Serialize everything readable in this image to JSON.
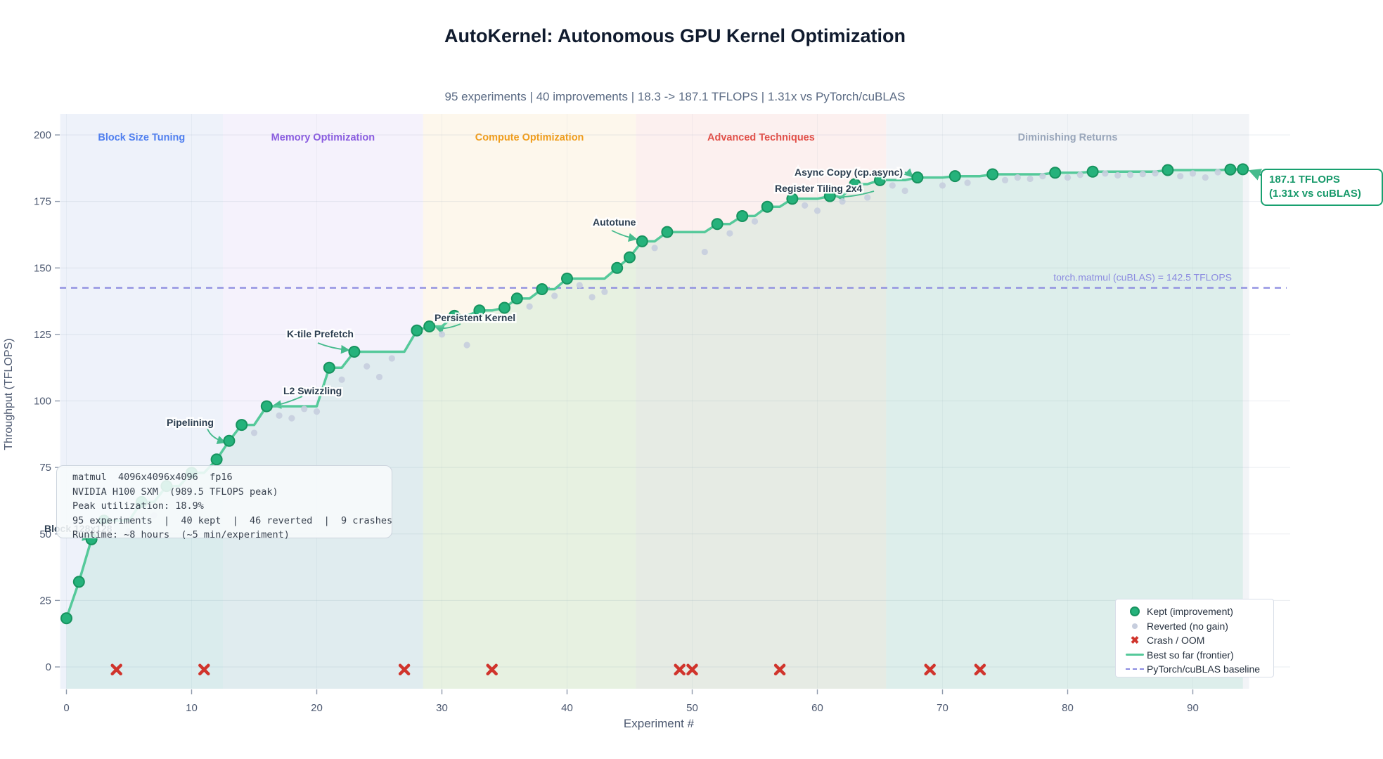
{
  "title": "AutoKernel: Autonomous GPU Kernel Optimization",
  "subtitle": "95 experiments  |  40 improvements  |  18.3 -> 187.1 TFLOPS  |  1.31x vs PyTorch/cuBLAS",
  "info_box": {
    "lines": [
      "matmul  4096x4096x4096  fp16",
      "NVIDIA H100 SXM  (989.5 TFLOPS peak)",
      "Peak utilization: 18.9%",
      "95 experiments  |  40 kept  |  46 reverted  |  9 crashes",
      "Runtime: ~8 hours  (~5 min/experiment)"
    ]
  },
  "callout": {
    "line1": "187.1 TFLOPS",
    "line2": "(1.31x vs cuBLAS)"
  },
  "legend": {
    "items": [
      {
        "label": "Kept (improvement)",
        "marker": "kept-marker-icon"
      },
      {
        "label": "Reverted (no gain)",
        "marker": "reverted-marker-icon"
      },
      {
        "label": "Crash / OOM",
        "marker": "crash-marker-icon"
      },
      {
        "label": "Best so far (frontier)",
        "marker": "frontier-line-icon"
      },
      {
        "label": "PyTorch/cuBLAS baseline",
        "marker": "baseline-dash-icon"
      }
    ],
    "crash_glyph": "✖"
  },
  "colors": {
    "frontier_line": "#55c99a",
    "kept_fill": "#25b27b",
    "kept_edge": "#17935f",
    "area_fill": "rgba(85,201,154,0.13)",
    "reverted": "#c7cede",
    "crash": "#d0342c",
    "baseline": "#8b8be0",
    "grid_h": "rgba(148,163,184,0.20)",
    "grid_v": "rgba(148,163,184,0.10)",
    "tick": "#8e99ab",
    "tick_label": "#4c5870",
    "annotation": "#2c3e50",
    "arrow": "#46bb8d",
    "callout_green": "#18a06f"
  },
  "chart_data": {
    "type": "scatter",
    "title": "AutoKernel: Autonomous GPU Kernel Optimization",
    "xlabel": "Experiment #",
    "ylabel": "Throughput (TFLOPS)",
    "xlim": [
      -0.5,
      97.5
    ],
    "ylim": [
      -8,
      207
    ],
    "xticks": [
      0,
      10,
      20,
      30,
      40,
      50,
      60,
      70,
      80,
      90
    ],
    "yticks": [
      0,
      25,
      50,
      75,
      100,
      125,
      150,
      175,
      200
    ],
    "grid": true,
    "legend_position": "lower right",
    "baseline": {
      "value": 142.5,
      "label": "torch.matmul (cuBLAS) = 142.5 TFLOPS"
    },
    "phases": [
      {
        "label": "Block Size Tuning",
        "start": -0.5,
        "end": 12.5,
        "bg": "#eef2fa",
        "color": "#4f7ff0"
      },
      {
        "label": "Memory Optimization",
        "start": 12.5,
        "end": 28.5,
        "bg": "#f5f2fc",
        "color": "#8a5ce0"
      },
      {
        "label": "Compute Optimization",
        "start": 28.5,
        "end": 45.5,
        "bg": "#fdf7ec",
        "color": "#f09d1c"
      },
      {
        "label": "Advanced Techniques",
        "start": 45.5,
        "end": 65.5,
        "bg": "#fcf0ef",
        "color": "#e25049"
      },
      {
        "label": "Diminishing Returns",
        "start": 65.5,
        "end": 94.5,
        "bg": "#f2f4f7",
        "color": "#9aa7bb"
      }
    ],
    "series": [
      {
        "name": "Kept (improvement)",
        "points": [
          [
            0,
            18.3
          ],
          [
            1,
            32
          ],
          [
            2,
            48
          ],
          [
            3,
            55
          ],
          [
            6,
            62
          ],
          [
            8,
            68
          ],
          [
            10,
            73
          ],
          [
            12,
            78
          ],
          [
            13,
            85
          ],
          [
            14,
            91
          ],
          [
            16,
            98
          ],
          [
            21,
            112.5
          ],
          [
            23,
            118.5
          ],
          [
            28,
            126.5
          ],
          [
            29,
            128
          ],
          [
            31,
            132
          ],
          [
            33,
            134
          ],
          [
            35,
            135
          ],
          [
            36,
            138.5
          ],
          [
            38,
            142
          ],
          [
            40,
            146
          ],
          [
            44,
            150
          ],
          [
            45,
            154
          ],
          [
            46,
            160
          ],
          [
            48,
            163.5
          ],
          [
            52,
            166.5
          ],
          [
            54,
            169.5
          ],
          [
            56,
            173
          ],
          [
            58,
            176
          ],
          [
            61,
            177
          ],
          [
            63,
            181.5
          ],
          [
            65,
            183
          ],
          [
            68,
            184
          ],
          [
            71,
            184.5
          ],
          [
            74,
            185.2
          ],
          [
            79,
            185.8
          ],
          [
            82,
            186.2
          ],
          [
            88,
            186.8
          ],
          [
            93,
            187
          ],
          [
            94,
            187.1
          ]
        ]
      },
      {
        "name": "Reverted (no gain)",
        "points": [
          [
            5,
            51
          ],
          [
            7,
            57
          ],
          [
            9,
            63
          ],
          [
            15,
            88
          ],
          [
            17,
            94.5
          ],
          [
            18,
            93.5
          ],
          [
            19,
            97
          ],
          [
            20,
            96
          ],
          [
            22,
            108
          ],
          [
            24,
            113
          ],
          [
            25,
            109
          ],
          [
            26,
            116
          ],
          [
            30,
            125
          ],
          [
            32,
            121
          ],
          [
            37,
            135.5
          ],
          [
            39,
            139.5
          ],
          [
            41,
            143.5
          ],
          [
            42,
            139
          ],
          [
            43,
            141
          ],
          [
            47,
            157.5
          ],
          [
            51,
            156
          ],
          [
            53,
            163
          ],
          [
            55,
            167.5
          ],
          [
            59,
            173.5
          ],
          [
            60,
            171.5
          ],
          [
            62,
            175
          ],
          [
            64,
            176.5
          ],
          [
            66,
            181
          ],
          [
            67,
            179
          ],
          [
            70,
            181
          ],
          [
            72,
            182
          ],
          [
            75,
            183
          ],
          [
            76,
            184
          ],
          [
            77,
            183.5
          ],
          [
            78,
            184.5
          ],
          [
            80,
            184
          ],
          [
            81,
            185
          ],
          [
            83,
            185.5
          ],
          [
            84,
            184.8
          ],
          [
            85,
            185
          ],
          [
            86,
            185.3
          ],
          [
            87,
            185.6
          ],
          [
            89,
            184.5
          ],
          [
            90,
            185.5
          ],
          [
            91,
            184
          ],
          [
            92,
            186
          ]
        ]
      },
      {
        "name": "Crash / OOM",
        "x": [
          4,
          11,
          27,
          34,
          49,
          50,
          57,
          69,
          73
        ],
        "y_plot": -1
      }
    ],
    "annotations": [
      {
        "label": "Block 128x128",
        "x": 2,
        "y": 48,
        "lx": 63,
        "ly": 757,
        "arrow": [
          114,
          757,
          120,
          764,
          127,
          765
        ]
      },
      {
        "label": "Pipelining",
        "x": 13,
        "y": 85,
        "lx": 237,
        "ly": 606,
        "arrow": [
          295,
          610,
          300,
          623,
          319,
          629
        ]
      },
      {
        "label": "L2 Swizzling",
        "x": 16,
        "y": 98,
        "lx": 403,
        "ly": 561,
        "arrow": [
          430,
          564,
          404,
          575,
          390,
          577
        ]
      },
      {
        "label": "K-tile Prefetch",
        "x": 23,
        "y": 118.5,
        "lx": 408,
        "ly": 480,
        "arrow": [
          452,
          488,
          472,
          496,
          495,
          498
        ]
      },
      {
        "label": "Persistent Kernel",
        "x": 29,
        "y": 128,
        "lx": 618,
        "ly": 457,
        "arrow": [
          655,
          461,
          632,
          470,
          621,
          466
        ]
      },
      {
        "label": "Autotune",
        "x": 46,
        "y": 160,
        "lx": 843,
        "ly": 321,
        "arrow": [
          870,
          328,
          886,
          336,
          904,
          340
        ]
      },
      {
        "label": "Register Tiling 2x4",
        "x": 61,
        "y": 177,
        "lx": 1102,
        "ly": 273,
        "arrow": [
          1243,
          272,
          1212,
          281,
          1191,
          280
        ]
      },
      {
        "label": "Async Copy (cp.async)",
        "x": 65,
        "y": 183,
        "lx": 1130,
        "ly": 250,
        "arrow": [
          1287,
          245,
          1292,
          246,
          1297,
          251
        ]
      }
    ],
    "final_point": {
      "x": 94,
      "y": 187.1
    }
  }
}
